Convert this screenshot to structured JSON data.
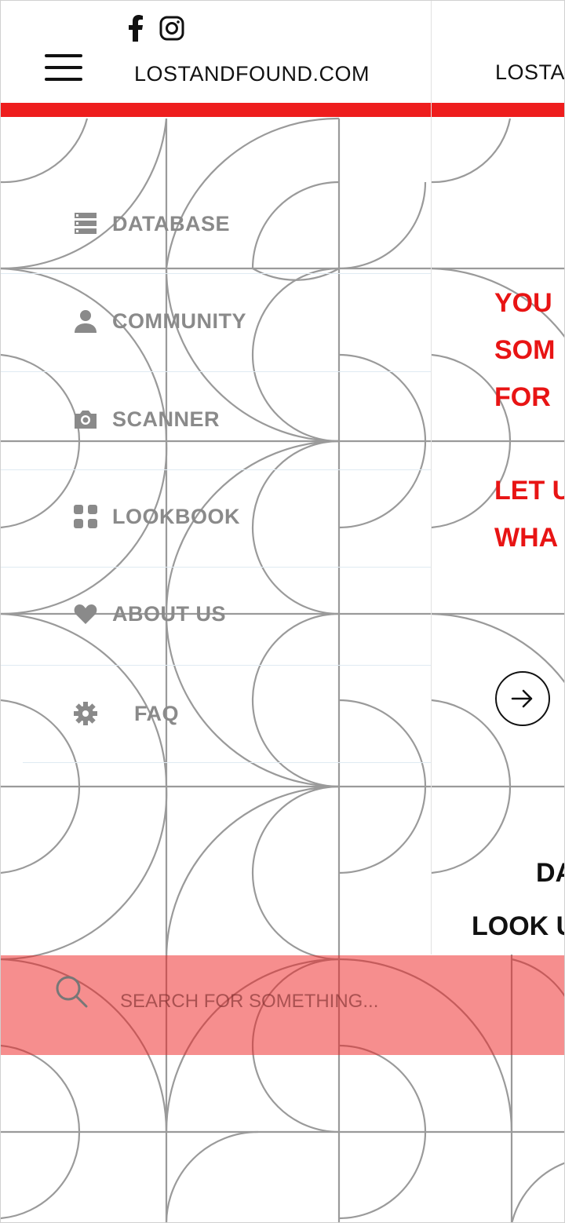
{
  "site": {
    "title": "LOSTANDFOUND.COM",
    "title_clipped": "LOSTA",
    "accent_color": "#ee1d1d"
  },
  "social": {
    "facebook_icon": "facebook-icon",
    "instagram_icon": "instagram-icon"
  },
  "menu": {
    "items": [
      {
        "label": "DATABASE",
        "icon": "database-icon"
      },
      {
        "label": "COMMUNITY",
        "icon": "person-icon"
      },
      {
        "label": "SCANNER",
        "icon": "camera-icon"
      },
      {
        "label": "LOOKBOOK",
        "icon": "grid-icon"
      },
      {
        "label": "ABOUT US",
        "icon": "heart-icon"
      },
      {
        "label": "FAQ",
        "icon": "gear-icon"
      }
    ]
  },
  "hero": {
    "line1": "YOU",
    "line2": "SOM",
    "line3": "FOR",
    "line4": "LET U",
    "line5": "WHA",
    "cta_icon": "arrow-right-icon"
  },
  "lower": {
    "heading1": "DA",
    "heading2": "LOOK U"
  },
  "search": {
    "placeholder": "SEARCH FOR SOMETHING...",
    "value": ""
  }
}
